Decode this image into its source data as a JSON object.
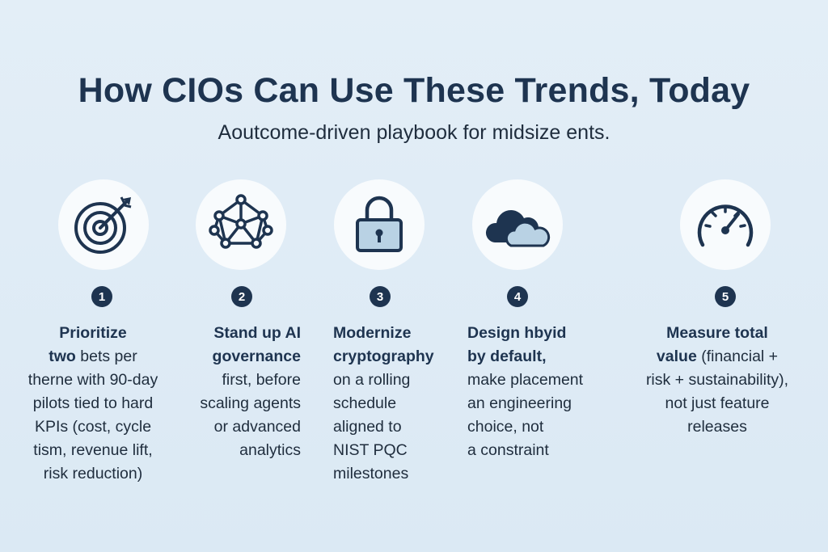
{
  "header": {
    "title": "How CIOs Can Use These Trends, Today",
    "subtitle": "Aoutcome-driven playbook for midsize ents."
  },
  "steps": [
    {
      "number": "1",
      "icon": "target-icon",
      "lines": [
        "Prioritize",
        "two bets per",
        "therne with 90-day",
        "pilots tied to hard",
        "KPIs (cost, cycle",
        "tism, revenue lift,",
        "risk reduction)"
      ]
    },
    {
      "number": "2",
      "icon": "network-icon",
      "lines": [
        "Stand up AI",
        "governance",
        "first, before",
        "scaling agents",
        "or advanced",
        "analytics"
      ]
    },
    {
      "number": "3",
      "icon": "lock-icon",
      "lines": [
        "Modernize",
        "cryptography",
        "on a rolling",
        "schedule",
        "aligned to",
        "NIST PQC",
        "milestones"
      ]
    },
    {
      "number": "4",
      "icon": "cloud-icon",
      "lines": [
        "Design hbyid",
        "by default,",
        "make placement",
        "an engineering",
        "choice, not",
        "a constraint"
      ]
    },
    {
      "number": "5",
      "icon": "gauge-icon",
      "lines": [
        "Measure total",
        "value (financial +",
        "risk + sustainability),",
        "not just feature",
        "releases"
      ]
    }
  ],
  "colors": {
    "navy": "#1e3450",
    "cloud_light": "#b9d2e4",
    "circle_bg": "#f8fbfd"
  }
}
